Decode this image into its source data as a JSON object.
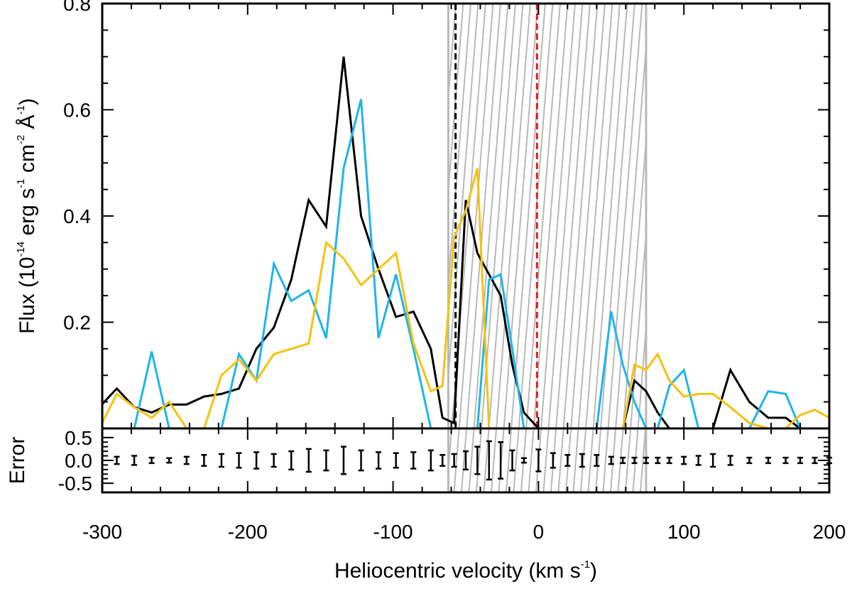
{
  "chart_data": {
    "type": "line",
    "x_axis": {
      "label": "Heliocentric velocity (km s",
      "label_sup": "-1",
      "label_end": ")",
      "range": [
        -300,
        200
      ],
      "ticks": [
        -300,
        -200,
        -100,
        0,
        100,
        200
      ],
      "tick_labels": [
        "-300",
        "-200",
        "-100",
        "0",
        "100",
        "200"
      ]
    },
    "top_panel": {
      "ylabel": {
        "prefix": "Flux (10",
        "exp1": "-14",
        "erg": " erg s",
        "exp2": "-1",
        "cm": " cm",
        "exp3": "-2",
        "ang": " Å",
        "exp4": "-1",
        "suffix": ")"
      },
      "ylim": [
        0,
        0.8
      ],
      "y_ticks": [
        0.2,
        0.4,
        0.6,
        0.8
      ],
      "y_tick_labels": [
        "0.2",
        "0.4",
        "0.6",
        "0.8"
      ],
      "series": [
        {
          "color": "#000000",
          "x": [
            -302,
            -290,
            -278,
            -266,
            -254,
            -242,
            -230,
            -218,
            -206,
            -194,
            -182,
            -170,
            -158,
            -146,
            -134,
            -122,
            -110,
            -98,
            -86,
            -74,
            -66,
            -58,
            -50,
            -42,
            -34,
            -26,
            -18,
            -10,
            0,
            10,
            20,
            30,
            40,
            50,
            58,
            66,
            74,
            82,
            90,
            100,
            110,
            120,
            132,
            145,
            158,
            170,
            180,
            190,
            200
          ],
          "y": [
            0.04,
            0.075,
            0.04,
            0.03,
            0.045,
            0.045,
            0.06,
            0.065,
            0.075,
            0.15,
            0.19,
            0.28,
            0.43,
            0.38,
            0.7,
            0.4,
            0.3,
            0.21,
            0.22,
            0.15,
            0.02,
            0.01,
            0.43,
            0.33,
            0.29,
            0.25,
            0.12,
            0.03,
            0.0,
            0.0,
            0.0,
            0.0,
            0.0,
            0.0,
            0.0,
            0.09,
            0.07,
            0.03,
            0.0,
            0.0,
            0.0,
            0.0,
            0.11,
            0.05,
            0.02,
            0.02,
            0.0,
            0.0,
            0.0
          ]
        },
        {
          "color": "#1fb5e8",
          "x": [
            -302,
            -290,
            -278,
            -266,
            -254,
            -242,
            -230,
            -218,
            -206,
            -194,
            -182,
            -170,
            -158,
            -146,
            -134,
            -122,
            -110,
            -98,
            -86,
            -74,
            -66,
            -58,
            -50,
            -42,
            -34,
            -26,
            -18,
            -10,
            0,
            10,
            20,
            30,
            40,
            50,
            58,
            66,
            74,
            82,
            90,
            100,
            110,
            120,
            132,
            145,
            158,
            170,
            180,
            190,
            200
          ],
          "y": [
            0.0,
            0.0,
            0.0,
            0.145,
            0.0,
            0.0,
            0.0,
            0.0,
            0.14,
            0.09,
            0.31,
            0.24,
            0.26,
            0.17,
            0.49,
            0.62,
            0.17,
            0.29,
            0.15,
            0.0,
            0.0,
            0.0,
            0.0,
            0.0,
            0.28,
            0.29,
            0.15,
            0.0,
            0.0,
            0.0,
            0.0,
            0.0,
            0.0,
            0.22,
            0.12,
            0.05,
            0.0,
            0.0,
            0.08,
            0.11,
            0.0,
            0.0,
            0.0,
            0.0,
            0.07,
            0.065,
            0.0,
            0.0,
            0.0
          ]
        },
        {
          "color": "#f5c20f",
          "x": [
            -302,
            -290,
            -278,
            -266,
            -254,
            -242,
            -230,
            -218,
            -206,
            -194,
            -182,
            -170,
            -158,
            -146,
            -134,
            -122,
            -110,
            -98,
            -86,
            -74,
            -66,
            -58,
            -50,
            -42,
            -34,
            -26,
            -18,
            -10,
            0,
            10,
            20,
            30,
            40,
            50,
            58,
            66,
            74,
            82,
            90,
            100,
            110,
            120,
            132,
            145,
            158,
            170,
            180,
            190,
            200
          ],
          "y": [
            0.0,
            0.065,
            0.04,
            0.02,
            0.05,
            0.0,
            0.0,
            0.1,
            0.13,
            0.09,
            0.14,
            0.15,
            0.16,
            0.35,
            0.32,
            0.27,
            0.3,
            0.33,
            0.16,
            0.07,
            0.08,
            0.36,
            0.41,
            0.49,
            0.0,
            0.0,
            0.0,
            0.0,
            0.0,
            0.0,
            0.0,
            0.0,
            0.0,
            0.0,
            0.0,
            0.12,
            0.11,
            0.14,
            0.09,
            0.06,
            0.065,
            0.065,
            0.04,
            0.01,
            0.0,
            0.0,
            0.025,
            0.035,
            0.02
          ]
        }
      ],
      "vlines": [
        {
          "x": -57,
          "color": "#000000",
          "style": "dashed"
        },
        {
          "x": -1,
          "color": "#e0201b",
          "style": "dashed"
        }
      ],
      "shaded_band": {
        "x_min": -62,
        "x_max": 74,
        "color": "#b8b8b8",
        "pattern": "diagonal-hatch"
      }
    },
    "bottom_panel": {
      "ylabel": "Error",
      "ylim": [
        -0.7,
        0.7
      ],
      "y_ticks": [
        -0.5,
        0.0,
        0.5
      ],
      "y_tick_labels": [
        "-0.5",
        "0.0",
        "0.5"
      ],
      "error_bars": {
        "x": [
          -290,
          -278,
          -266,
          -254,
          -242,
          -230,
          -218,
          -206,
          -194,
          -182,
          -170,
          -158,
          -146,
          -134,
          -122,
          -110,
          -98,
          -86,
          -74,
          -66,
          -58,
          -50,
          -42,
          -34,
          -26,
          -18,
          -10,
          0,
          10,
          20,
          30,
          40,
          50,
          58,
          66,
          74,
          82,
          90,
          100,
          110,
          120,
          132,
          145,
          158,
          170,
          180,
          190,
          200
        ],
        "half_height": [
          0.08,
          0.1,
          0.06,
          0.05,
          0.08,
          0.12,
          0.14,
          0.16,
          0.18,
          0.14,
          0.2,
          0.25,
          0.22,
          0.3,
          0.22,
          0.18,
          0.16,
          0.18,
          0.22,
          0.12,
          0.14,
          0.2,
          0.3,
          0.42,
          0.4,
          0.22,
          0.05,
          0.24,
          0.16,
          0.12,
          0.14,
          0.12,
          0.08,
          0.06,
          0.06,
          0.06,
          0.06,
          0.06,
          0.08,
          0.1,
          0.14,
          0.1,
          0.06,
          0.06,
          0.06,
          0.06,
          0.06,
          0.06
        ]
      }
    }
  }
}
